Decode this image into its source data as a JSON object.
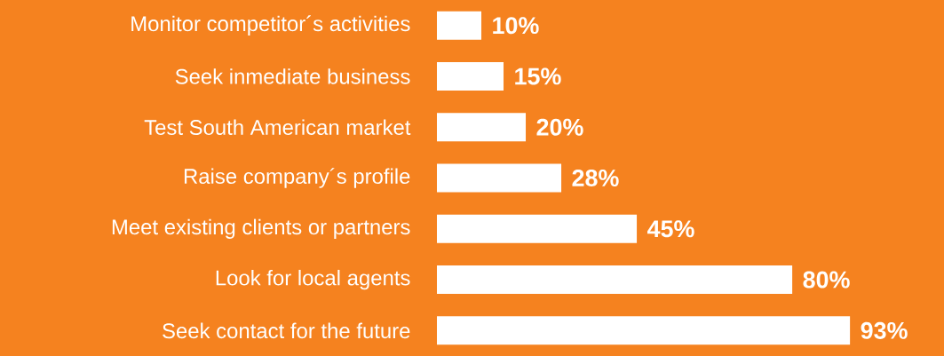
{
  "chart_data": {
    "type": "bar",
    "orientation": "horizontal",
    "categories": [
      "Monitor competitor´s activities",
      "Seek inmediate business",
      "Test South American  market",
      "Raise company´s profile",
      "Meet existing clients or partners",
      "Look for local agents",
      "Seek contact for the future"
    ],
    "values": [
      10,
      15,
      20,
      28,
      45,
      80,
      93
    ],
    "value_labels": [
      "10%",
      "15%",
      "20%",
      "28%",
      "45%",
      "80%",
      "93%"
    ],
    "color": "#ffffff",
    "tick_labels": "y"
  }
}
